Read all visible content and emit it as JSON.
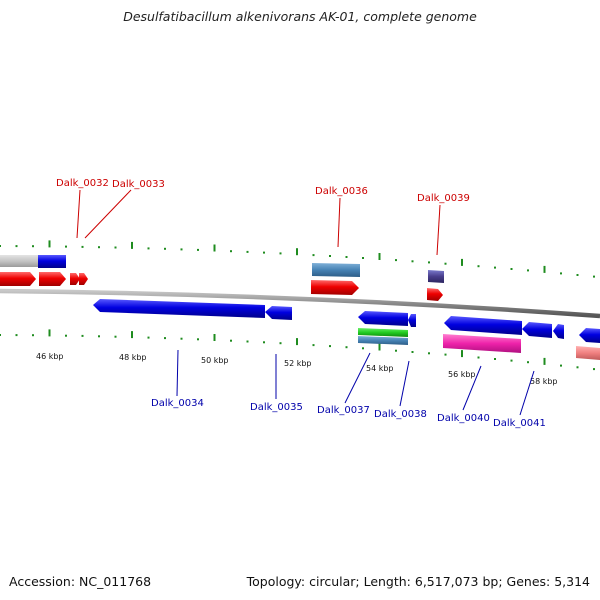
{
  "title": "Desulfatibacillum alkenivorans AK-01, complete genome",
  "footer": {
    "accession": "Accession: NC_011768",
    "summary": "Topology: circular; Length: 6,517,073 bp; Genes: 5,314"
  },
  "colors": {
    "tick": "#1f8c1f",
    "backbone": "#888888",
    "top_label": "#cc0000",
    "bottom_label": "#0000aa"
  },
  "scale_labels": [
    "46 kbp",
    "48 kbp",
    "50 kbp",
    "52 kbp",
    "54 kbp",
    "56 kbp",
    "58 kbp"
  ],
  "gene_labels_top": [
    "Dalk_0032",
    "Dalk_0033",
    "Dalk_0036",
    "Dalk_0039"
  ],
  "gene_labels_bottom": [
    "Dalk_0034",
    "Dalk_0035",
    "Dalk_0037",
    "Dalk_0038",
    "Dalk_0040",
    "Dalk_0041"
  ]
}
